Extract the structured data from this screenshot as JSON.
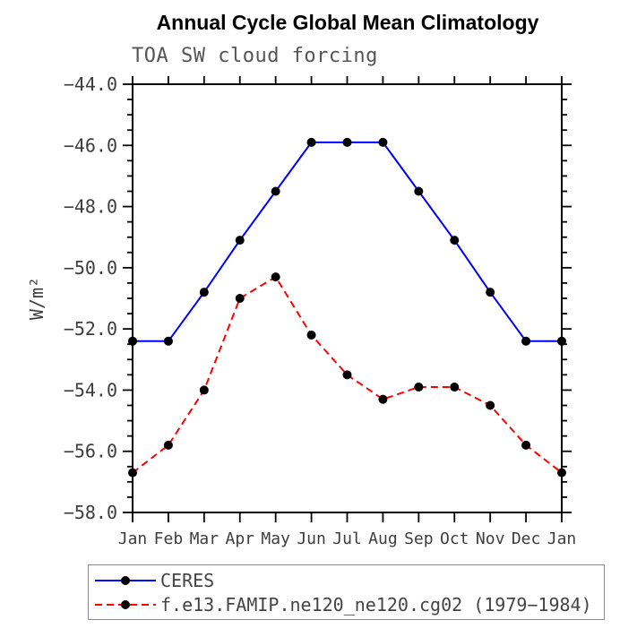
{
  "title": "Annual Cycle Global Mean Climatology",
  "subtitle": "TOA SW cloud forcing",
  "chart_data": {
    "type": "line",
    "title": "Annual Cycle Global Mean Climatology",
    "subtitle": "TOA SW cloud forcing",
    "xlabel": "",
    "ylabel": "W/m²",
    "categories": [
      "Jan",
      "Feb",
      "Mar",
      "Apr",
      "May",
      "Jun",
      "Jul",
      "Aug",
      "Sep",
      "Oct",
      "Nov",
      "Dec",
      "Jan"
    ],
    "ylim": [
      -58.0,
      -44.0
    ],
    "y_major_step": 2.0,
    "y_minor_step": 0.5,
    "y_tick_labels": [
      "−44.0",
      "−46.0",
      "−48.0",
      "−50.0",
      "−52.0",
      "−54.0",
      "−56.0",
      "−58.0"
    ],
    "grid": false,
    "legend_position": "bottom-left",
    "axis_color": "#000000",
    "tick_label_color": "#3d3d3d",
    "marker_color": "#000000",
    "series": [
      {
        "name": "CERES",
        "color": "#0000ff",
        "style": "solid",
        "marker": "circle",
        "values": [
          -52.4,
          -52.4,
          -50.8,
          -49.1,
          -47.5,
          -45.9,
          -45.9,
          -45.9,
          -47.5,
          -49.1,
          -50.8,
          -52.4,
          -52.4
        ]
      },
      {
        "name": "f.e13.FAMIP.ne120_ne120.cg02 (1979−1984)",
        "color": "#ff0000",
        "style": "dashed",
        "marker": "circle",
        "values": [
          -56.7,
          -55.8,
          -54.0,
          -51.0,
          -50.3,
          -52.2,
          -53.5,
          -54.3,
          -53.9,
          -53.9,
          -54.5,
          -55.8,
          -56.7
        ]
      }
    ]
  },
  "legend": {
    "items": [
      {
        "label": "CERES",
        "color": "#0000ff",
        "style": "solid"
      },
      {
        "label": "f.e13.FAMIP.ne120_ne120.cg02 (1979−1984)",
        "color": "#ff0000",
        "style": "dashed"
      }
    ]
  }
}
